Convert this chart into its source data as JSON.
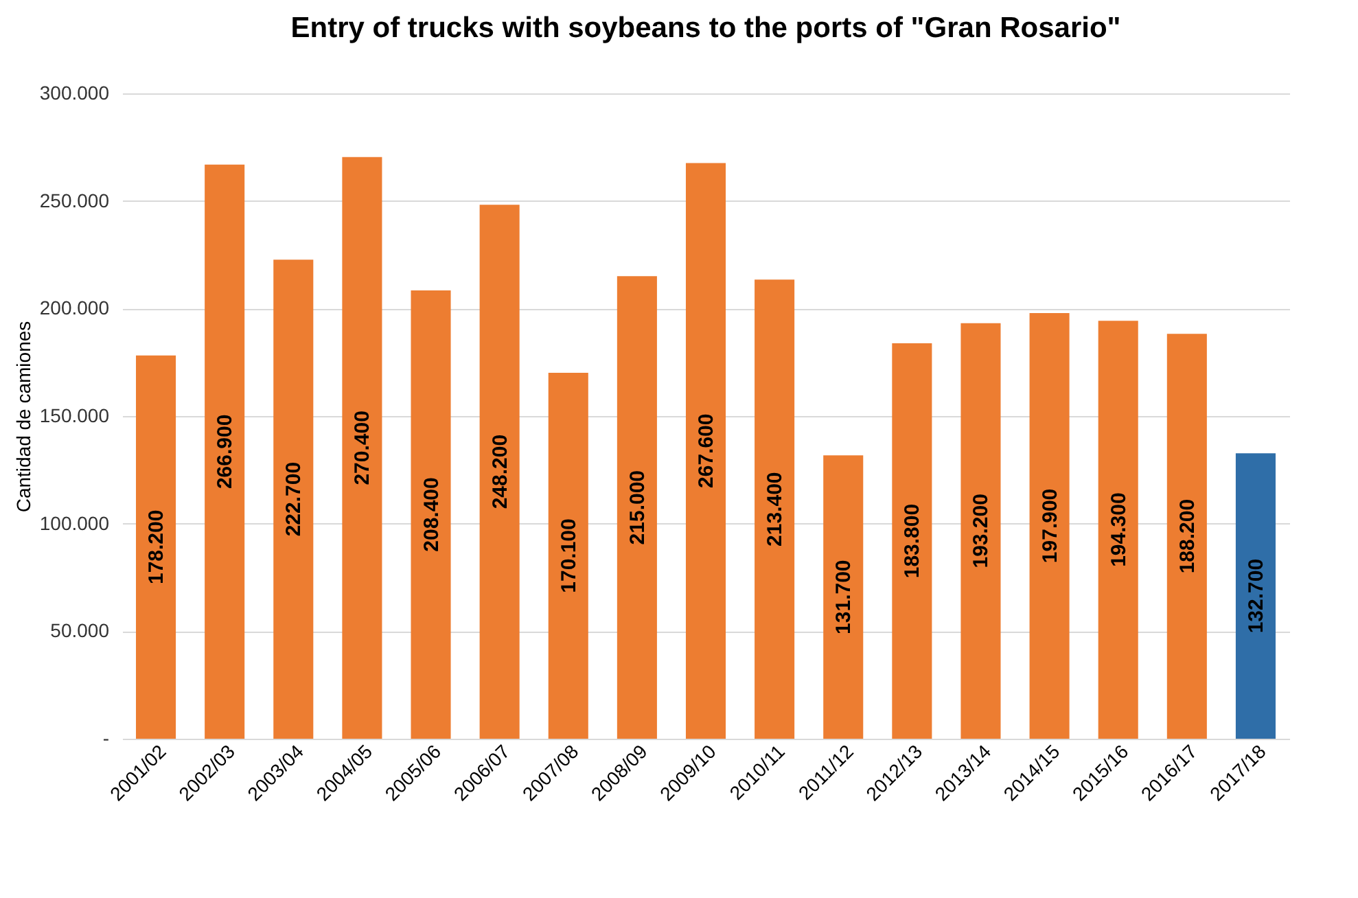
{
  "chart_data": {
    "type": "bar",
    "title": "Entry of trucks with soybeans to the ports of \"Gran Rosario\"",
    "ylabel": "Cantidad de camiones",
    "categories": [
      "2001/02",
      "2002/03",
      "2003/04",
      "2004/05",
      "2005/06",
      "2006/07",
      "2007/08",
      "2008/09",
      "2009/10",
      "2010/11",
      "2011/12",
      "2012/13",
      "2013/14",
      "2014/15",
      "2015/16",
      "2016/17",
      "2017/18"
    ],
    "values": [
      178200,
      266900,
      222700,
      270400,
      208400,
      248200,
      170100,
      215000,
      267600,
      213400,
      131700,
      183800,
      193200,
      197900,
      194300,
      188200,
      132700
    ],
    "value_labels": [
      "178.200",
      "266.900",
      "222.700",
      "270.400",
      "208.400",
      "248.200",
      "170.100",
      "215.000",
      "267.600",
      "213.400",
      "131.700",
      "183.800",
      "193.200",
      "197.900",
      "194.300",
      "188.200",
      "132.700"
    ],
    "colors": [
      "#ed7d31",
      "#ed7d31",
      "#ed7d31",
      "#ed7d31",
      "#ed7d31",
      "#ed7d31",
      "#ed7d31",
      "#ed7d31",
      "#ed7d31",
      "#ed7d31",
      "#ed7d31",
      "#ed7d31",
      "#ed7d31",
      "#ed7d31",
      "#ed7d31",
      "#ed7d31",
      "#2f6ea8"
    ],
    "ylim": [
      0,
      300000
    ],
    "yticks": [
      {
        "value": 0,
        "label": "-"
      },
      {
        "value": 50000,
        "label": "50.000"
      },
      {
        "value": 100000,
        "label": "100.000"
      },
      {
        "value": 150000,
        "label": "150.000"
      },
      {
        "value": 200000,
        "label": "200.000"
      },
      {
        "value": 250000,
        "label": "250.000"
      },
      {
        "value": 300000,
        "label": "300.000"
      }
    ],
    "grid": "y"
  }
}
